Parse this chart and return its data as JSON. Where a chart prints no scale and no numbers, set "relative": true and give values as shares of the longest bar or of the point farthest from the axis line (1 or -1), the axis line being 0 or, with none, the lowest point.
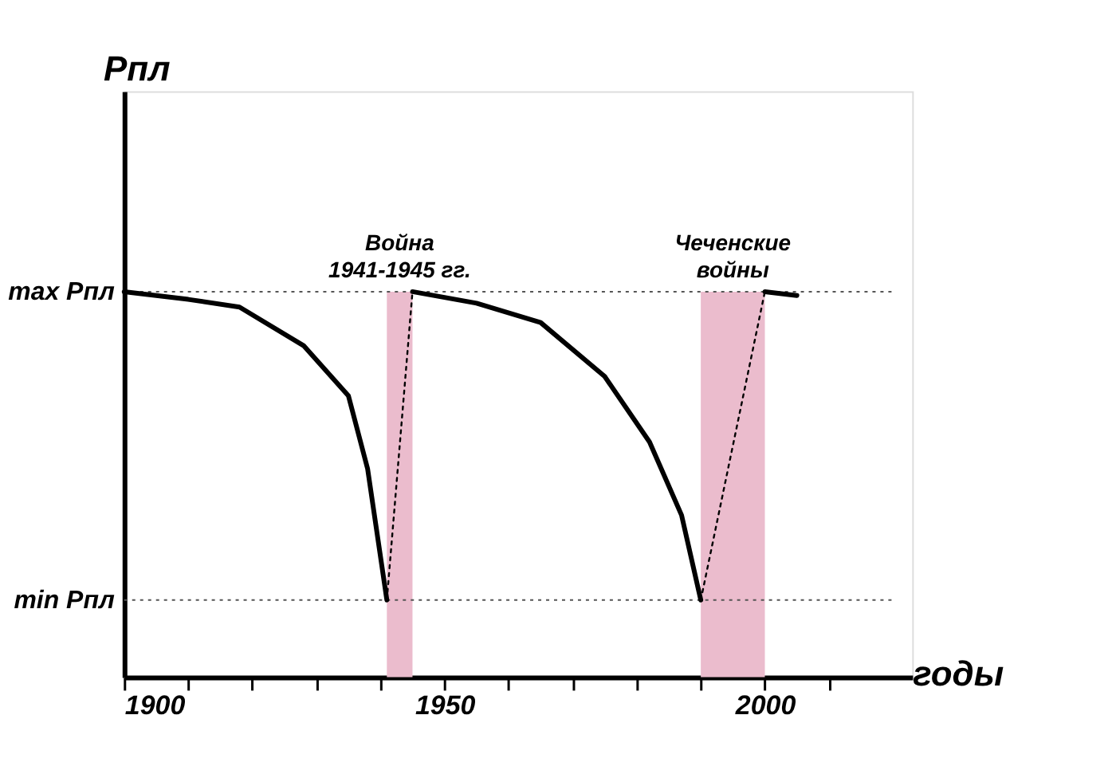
{
  "chart_data": {
    "type": "line",
    "xlabel": "годы",
    "annotations": [
      "Рпл"
    ],
    "relative": true,
    "xlim": [
      1900,
      2023
    ],
    "xticks": [
      {
        "value": 1900,
        "label": "1900"
      },
      {
        "value": 1910,
        "label": null
      },
      {
        "value": 1920,
        "label": null
      },
      {
        "value": 1930,
        "label": null
      },
      {
        "value": 1940,
        "label": null
      },
      {
        "value": 1950,
        "label": "1950"
      },
      {
        "value": 1960,
        "label": null
      },
      {
        "value": 1970,
        "label": null
      },
      {
        "value": 1980,
        "label": null
      },
      {
        "value": 1990,
        "label": null
      },
      {
        "value": 2000,
        "label": "2000"
      },
      {
        "value": 2010,
        "label": null
      }
    ],
    "series": [
      {
        "color": "#000000",
        "line_style": "solid",
        "x": [
          1900,
          1910,
          1918,
          1928,
          1935,
          1938,
          1941
        ],
        "values": [
          1,
          0.98,
          0.96,
          0.86,
          0.73,
          0.54,
          0.2
        ]
      },
      {
        "color": "#000000",
        "line_style": "dotted",
        "x": [
          1941,
          1945
        ],
        "values": [
          0.2,
          1
        ]
      },
      {
        "color": "#000000",
        "line_style": "solid",
        "x": [
          1945,
          1955,
          1965,
          1975,
          1982,
          1987,
          1990
        ],
        "values": [
          1,
          0.97,
          0.92,
          0.78,
          0.61,
          0.42,
          0.2
        ]
      },
      {
        "color": "#000000",
        "line_style": "dotted",
        "x": [
          1990,
          2000
        ],
        "values": [
          0.2,
          1
        ]
      },
      {
        "color": "#000000",
        "line_style": "solid",
        "x": [
          2000,
          2005
        ],
        "values": [
          1,
          0.99
        ]
      }
    ],
    "bands": [
      {
        "axis": "x",
        "from": 1941,
        "to": 1945,
        "label": "Война\n1941-1945 гг.",
        "color": "#ebbccd"
      },
      {
        "axis": "x",
        "from": 1990,
        "to": 2000,
        "label": "Чеченские\nвойны",
        "color": "#ebbccd"
      }
    ],
    "ref_lines": [
      {
        "axis": "y",
        "value": 1,
        "label": "max Рпл",
        "color": "#555555",
        "line_style": "dotted"
      },
      {
        "axis": "y",
        "value": 0.2,
        "label": "min Рпл",
        "color": "#555555",
        "line_style": "dotted"
      }
    ],
    "grid": false
  }
}
